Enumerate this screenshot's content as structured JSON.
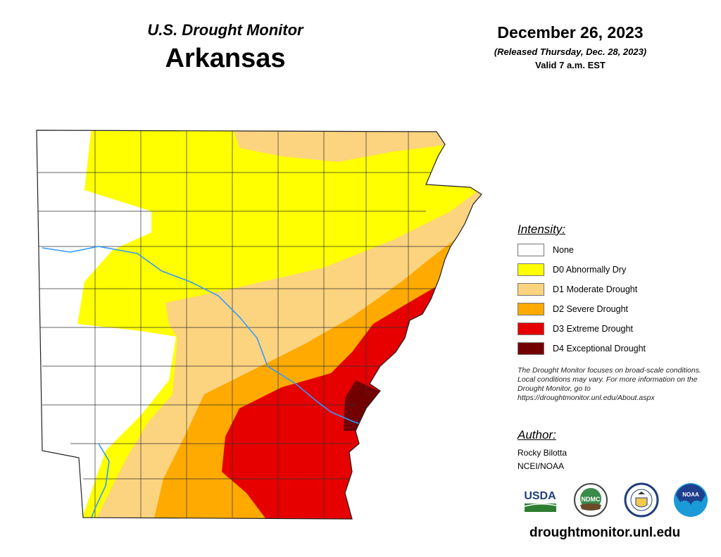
{
  "header": {
    "subtitle": "U.S. Drought Monitor",
    "title": "Arkansas",
    "date": "December 26, 2023",
    "released": "(Released Thursday, Dec. 28, 2023)",
    "valid": "Valid 7 a.m. EST"
  },
  "legend": {
    "title": "Intensity:",
    "items": [
      {
        "label": "None",
        "color": "#ffffff"
      },
      {
        "label": "D0 Abnormally Dry",
        "color": "#ffff00"
      },
      {
        "label": "D1 Moderate Drought",
        "color": "#fcd37f"
      },
      {
        "label": "D2 Severe Drought",
        "color": "#ffaa00"
      },
      {
        "label": "D3 Extreme Drought",
        "color": "#e60000"
      },
      {
        "label": "D4 Exceptional Drought",
        "color": "#730000"
      }
    ]
  },
  "note": "The Drought Monitor focuses on broad-scale conditions. Local conditions may vary. For more information on the Drought Monitor, go to https://droughtmonitor.unl.edu/About.aspx",
  "author": {
    "title": "Author:",
    "name": "Rocky Bilotta",
    "org": "NCEI/NOAA"
  },
  "logos": [
    "USDA",
    "NDMC",
    "Department of Commerce",
    "NOAA"
  ],
  "url": "droughtmonitor.unl.edu",
  "colors": {
    "river": "#3399ff",
    "county_lines": "#333333"
  }
}
